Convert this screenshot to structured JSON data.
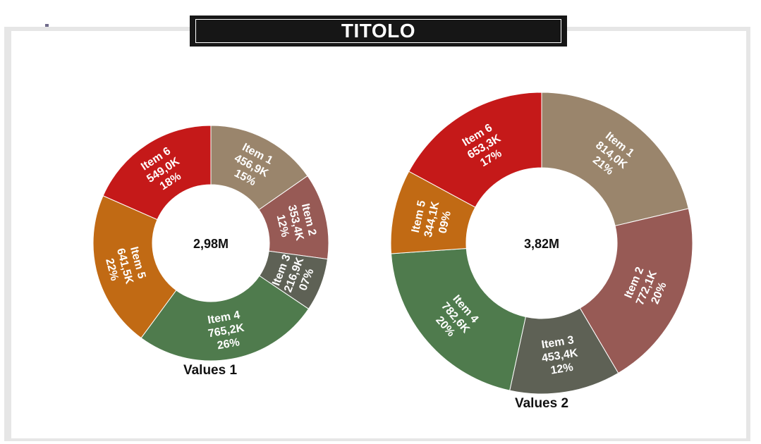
{
  "title": "TITOLO",
  "chart_data": [
    {
      "type": "pie",
      "variant": "donut",
      "name": "Values 1",
      "total_label": "2,98M",
      "slices": [
        {
          "label": "Item 1",
          "value_label": "456,9K",
          "pct_label": "15%",
          "value": 456.9,
          "color": "#9a856c"
        },
        {
          "label": "Item 2",
          "value_label": "353,4K",
          "pct_label": "12%",
          "value": 353.4,
          "color": "#975a55"
        },
        {
          "label": "Item 3",
          "value_label": "216,9K",
          "pct_label": "07%",
          "value": 216.9,
          "color": "#5e6155"
        },
        {
          "label": "Item 4",
          "value_label": "765,2K",
          "pct_label": "26%",
          "value": 765.2,
          "color": "#4f7b4d"
        },
        {
          "label": "Item 5",
          "value_label": "641,5K",
          "pct_label": "22%",
          "value": 641.5,
          "color": "#c16a14"
        },
        {
          "label": "Item 6",
          "value_label": "549,0K",
          "pct_label": "18%",
          "value": 549.0,
          "color": "#c51919"
        }
      ]
    },
    {
      "type": "pie",
      "variant": "donut",
      "name": "Values 2",
      "total_label": "3,82M",
      "slices": [
        {
          "label": "Item 1",
          "value_label": "814,0K",
          "pct_label": "21%",
          "value": 814.0,
          "color": "#9a856c"
        },
        {
          "label": "Item 2",
          "value_label": "772,1K",
          "pct_label": "20%",
          "value": 772.1,
          "color": "#975a55"
        },
        {
          "label": "Item 3",
          "value_label": "453,4K",
          "pct_label": "12%",
          "value": 453.4,
          "color": "#5e6155"
        },
        {
          "label": "Item 4",
          "value_label": "782,6K",
          "pct_label": "20%",
          "value": 782.6,
          "color": "#4f7b4d"
        },
        {
          "label": "Item 5",
          "value_label": "344,1K",
          "pct_label": "09%",
          "value": 344.1,
          "color": "#c16a14"
        },
        {
          "label": "Item 6",
          "value_label": "653,3K",
          "pct_label": "17%",
          "value": 653.3,
          "color": "#c51919"
        }
      ]
    }
  ]
}
